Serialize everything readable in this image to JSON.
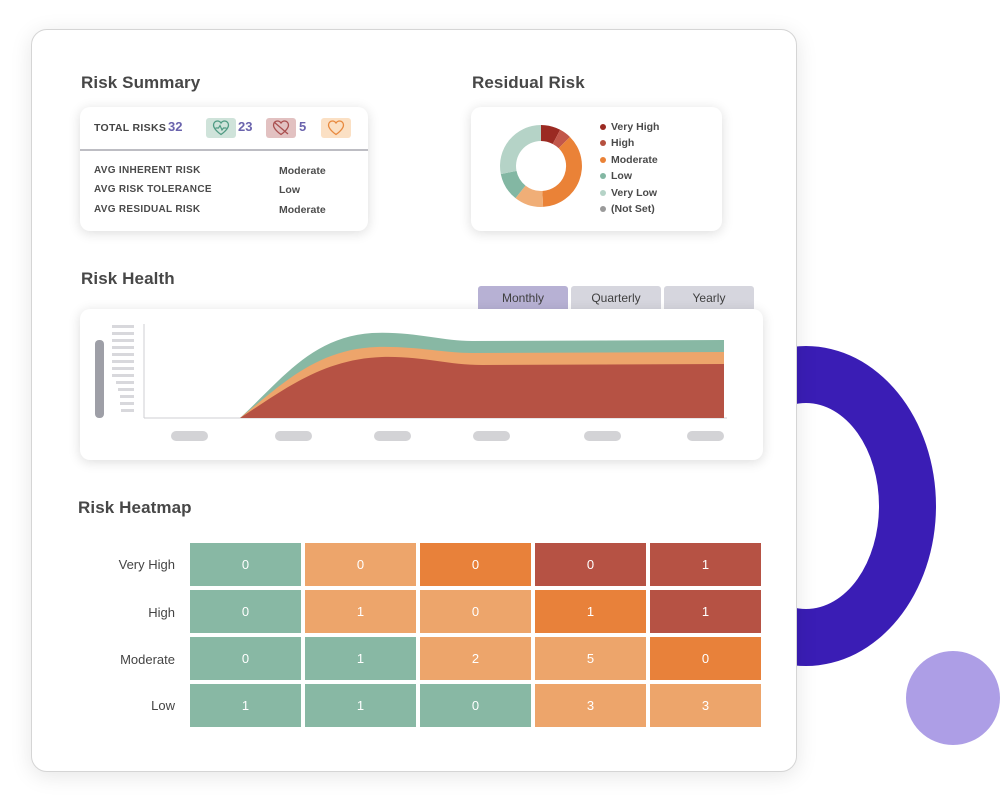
{
  "risk_summary": {
    "title": "Risk Summary",
    "total_label": "TOTAL RISKS",
    "total_value": "32",
    "badges": [
      {
        "icon": "heart-check-icon",
        "value": "23",
        "color": "#cfe3da",
        "stroke": "#4f9a83"
      },
      {
        "icon": "heart-broken-icon",
        "value": "5",
        "color": "#e2c1c1",
        "stroke": "#a94f4f"
      },
      {
        "icon": "heart-outline-icon",
        "value": "",
        "color": "#fbe0c4",
        "stroke": "#e8893e"
      }
    ],
    "rows": [
      {
        "label": "AVG INHERENT RISK",
        "value": "Moderate"
      },
      {
        "label": "AVG RISK TOLERANCE",
        "value": "Low"
      },
      {
        "label": "AVG RESIDUAL RISK",
        "value": "Moderate"
      }
    ]
  },
  "residual_risk": {
    "title": "Residual Risk",
    "legend": [
      {
        "label": "Very High",
        "color": "#9b2a22"
      },
      {
        "label": "High",
        "color": "#b5503f"
      },
      {
        "label": "Moderate",
        "color": "#ea8237"
      },
      {
        "label": "Low",
        "color": "#83b7a3"
      },
      {
        "label": "Very Low",
        "color": "#b5d3c7"
      },
      {
        "label": "(Not Set)",
        "color": "#9a9a9a"
      }
    ]
  },
  "risk_health": {
    "title": "Risk Health",
    "tabs": [
      {
        "label": "Monthly",
        "active": true
      },
      {
        "label": "Quarterly",
        "active": false
      },
      {
        "label": "Yearly",
        "active": false
      }
    ]
  },
  "risk_heatmap": {
    "title": "Risk Heatmap",
    "rows": [
      {
        "label": "Very High",
        "cells": [
          "0",
          "0",
          "0",
          "0",
          "1"
        ],
        "colors": [
          "#88b8a4",
          "#eda56b",
          "#e8813a",
          "#b65244",
          "#b65244"
        ]
      },
      {
        "label": "High",
        "cells": [
          "0",
          "1",
          "0",
          "1",
          "1"
        ],
        "colors": [
          "#88b8a4",
          "#eda56b",
          "#eda56b",
          "#e8813a",
          "#b65244"
        ]
      },
      {
        "label": "Moderate",
        "cells": [
          "0",
          "1",
          "2",
          "5",
          "0"
        ],
        "colors": [
          "#88b8a4",
          "#88b8a4",
          "#eda56b",
          "#eda56b",
          "#e8813a"
        ]
      },
      {
        "label": "Low",
        "cells": [
          "1",
          "1",
          "0",
          "3",
          "3"
        ],
        "colors": [
          "#88b8a4",
          "#88b8a4",
          "#88b8a4",
          "#eda56b",
          "#eda56b"
        ]
      }
    ]
  }
}
